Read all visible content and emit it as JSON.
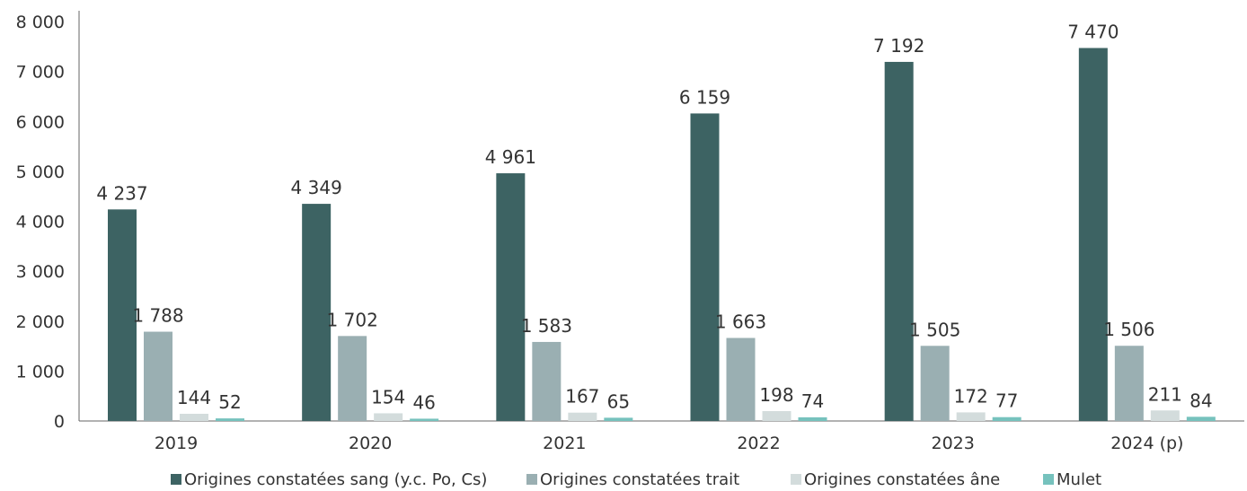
{
  "chart_data": {
    "type": "bar",
    "title": "",
    "xlabel": "",
    "ylabel": "",
    "ylim": [
      0,
      8000
    ],
    "yticks": [
      0,
      1000,
      2000,
      3000,
      4000,
      5000,
      6000,
      7000,
      8000
    ],
    "ytick_labels": [
      "0",
      "1 000",
      "2 000",
      "3 000",
      "4 000",
      "5 000",
      "6 000",
      "7 000",
      "8 000"
    ],
    "grid": false,
    "legend_position": "bottom",
    "categories": [
      "2019",
      "2020",
      "2021",
      "2022",
      "2023",
      "2024 (p)"
    ],
    "series": [
      {
        "name": "Origines constatées sang (y.c. Po, Cs)",
        "color": "#3d6363",
        "values": [
          4237,
          4349,
          4961,
          6159,
          7192,
          7470
        ],
        "labels": [
          "4 237",
          "4 349",
          "4 961",
          "6 159",
          "7 192",
          "7 470"
        ]
      },
      {
        "name": "Origines constatées trait",
        "color": "#9aafb2",
        "values": [
          1788,
          1702,
          1583,
          1663,
          1505,
          1506
        ],
        "labels": [
          "1 788",
          "1 702",
          "1 583",
          "1 663",
          "1 505",
          "1 506"
        ]
      },
      {
        "name": "Origines constatées âne",
        "color": "#d3dcdc",
        "values": [
          144,
          154,
          167,
          198,
          172,
          211
        ],
        "labels": [
          "144",
          "154",
          "167",
          "198",
          "172",
          "211"
        ]
      },
      {
        "name": "Mulet",
        "color": "#76c2bd",
        "values": [
          52,
          46,
          65,
          74,
          77,
          84
        ],
        "labels": [
          "52",
          "46",
          "65",
          "74",
          "77",
          "84"
        ]
      }
    ]
  }
}
